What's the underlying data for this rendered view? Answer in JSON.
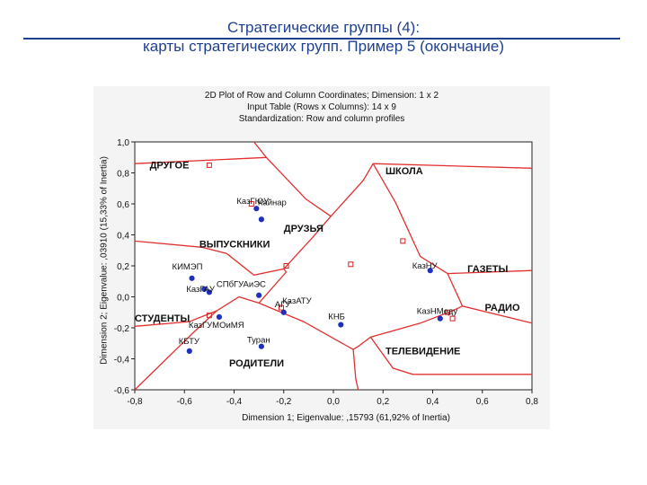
{
  "slide": {
    "title_line1": "Стратегические группы (4):",
    "title_line2": "карты стратегических групп. Пример 5 (окончание)"
  },
  "chart_data": {
    "type": "scatter",
    "title": "2D Plot of Row and Column Coordinates; Dimension: 1 x 2",
    "subtitle_lines": [
      "Input Table (Rows x Columns): 14 x 9",
      "Standardization: Row and column profiles"
    ],
    "xlabel": "Dimension 1; Eigenvalue: ,15793 (61,92% of Inertia)",
    "ylabel": "Dimension 2; Eigenvalue: ,03910 (15,33% of Inertia)",
    "xlim": [
      -0.8,
      0.8
    ],
    "ylim": [
      -0.6,
      1.0
    ],
    "x_ticks": [
      "-0,8",
      "-0,6",
      "-0,4",
      "-0,2",
      "0,0",
      "0,2",
      "0,4",
      "0,6",
      "0,8"
    ],
    "y_ticks": [
      "1,0",
      "0,8",
      "0,6",
      "0,4",
      "0,2",
      "0,0",
      "-0,2",
      "-0,4",
      "-0,6"
    ],
    "grid": false,
    "colors": {
      "rows": "#1f2fbf",
      "columns": "#d42020",
      "lines": "#e23030"
    },
    "rows_series": [
      {
        "label": "Кайнар",
        "x": -0.29,
        "y": 0.5
      },
      {
        "label": "КазГЮУ",
        "x": -0.31,
        "y": 0.57
      },
      {
        "label": "КИМЭП",
        "x": -0.57,
        "y": 0.12
      },
      {
        "label": "КазГАУ",
        "x": -0.52,
        "y": 0.05
      },
      {
        "label": "СПбГУАиЭС",
        "x": -0.5,
        "y": 0.03
      },
      {
        "label": "КазГУМОиМЯ",
        "x": -0.46,
        "y": -0.13
      },
      {
        "label": "КазАТУ",
        "x": -0.3,
        "y": 0.01
      },
      {
        "label": "АГУ",
        "x": -0.2,
        "y": -0.1
      },
      {
        "label": "КНБ",
        "x": 0.03,
        "y": -0.18
      },
      {
        "label": "КБТУ",
        "x": -0.58,
        "y": -0.35
      },
      {
        "label": "Туран",
        "x": -0.29,
        "y": -0.32
      },
      {
        "label": "КазНУ",
        "x": 0.39,
        "y": 0.17
      },
      {
        "label": "КазНМеду",
        "x": 0.43,
        "y": -0.14
      }
    ],
    "columns_series": [
      {
        "label": "ДРУГОЕ",
        "x": -0.5,
        "y": 0.85
      },
      {
        "label": "ШКОЛА",
        "x": 0.28,
        "y": 0.36
      },
      {
        "label": "ДРУЗЬЯ",
        "x": -0.33,
        "y": 0.6
      },
      {
        "label": "ВЫПУСКНИКИ",
        "x": 0.07,
        "y": 0.21
      },
      {
        "label": "ГАЗЕТЫ",
        "x": -0.19,
        "y": 0.2
      },
      {
        "label": "РАДИО",
        "x": 0.48,
        "y": -0.14
      },
      {
        "label": "СТУДЕНТЫ",
        "x": -0.5,
        "y": -0.12
      },
      {
        "label": "РОДИТЕЛИ",
        "x": -0.21,
        "y": -0.07
      },
      {
        "label": "ТЕЛЕВИДЕНИЕ",
        "x": 0.46,
        "y": -0.1
      }
    ],
    "group_labels": [
      {
        "text": "ДРУГОЕ",
        "x": -0.74,
        "y": 0.83
      },
      {
        "text": "ШКОЛА",
        "x": 0.21,
        "y": 0.79
      },
      {
        "text": "ДРУЗЬЯ",
        "x": -0.2,
        "y": 0.42
      },
      {
        "text": "ВЫПУСКНИКИ",
        "x": -0.54,
        "y": 0.32
      },
      {
        "text": "ГАЗЕТЫ",
        "x": 0.54,
        "y": 0.16
      },
      {
        "text": "РАДИО",
        "x": 0.61,
        "y": -0.09
      },
      {
        "text": "СТУДЕНТЫ",
        "x": -0.8,
        "y": -0.16
      },
      {
        "text": "РОДИТЕЛИ",
        "x": -0.42,
        "y": -0.45
      },
      {
        "text": "ТЕЛЕВИДЕНИЕ",
        "x": 0.21,
        "y": -0.37
      }
    ],
    "boundaries": [
      [
        [
          -0.8,
          0.36
        ],
        [
          -0.53,
          0.32
        ],
        [
          -0.43,
          0.28
        ],
        [
          -0.32,
          0.14
        ],
        [
          -0.2,
          0.18
        ],
        [
          -0.08,
          0.39
        ],
        [
          -0.01,
          0.52
        ],
        [
          0.12,
          0.75
        ],
        [
          0.16,
          0.86
        ]
      ],
      [
        [
          -0.01,
          0.52
        ],
        [
          -0.11,
          0.63
        ],
        [
          -0.27,
          0.9
        ],
        [
          -0.32,
          1.0
        ]
      ],
      [
        [
          -0.27,
          0.9
        ],
        [
          -0.8,
          0.86
        ]
      ],
      [
        [
          0.16,
          0.86
        ],
        [
          0.8,
          0.83
        ]
      ],
      [
        [
          0.16,
          0.86
        ],
        [
          0.25,
          0.61
        ],
        [
          0.35,
          0.26
        ],
        [
          0.46,
          0.15
        ]
      ],
      [
        [
          0.46,
          0.15
        ],
        [
          0.8,
          0.17
        ]
      ],
      [
        [
          0.46,
          0.15
        ],
        [
          0.52,
          -0.06
        ],
        [
          0.8,
          -0.17
        ]
      ],
      [
        [
          0.52,
          -0.06
        ],
        [
          0.48,
          -0.09
        ],
        [
          0.35,
          -0.17
        ],
        [
          0.15,
          -0.26
        ],
        [
          0.1,
          -0.32
        ],
        [
          0.08,
          -0.34
        ]
      ],
      [
        [
          0.15,
          -0.26
        ],
        [
          0.24,
          -0.46
        ],
        [
          0.32,
          -0.5
        ],
        [
          0.8,
          -0.5
        ]
      ],
      [
        [
          0.08,
          -0.34
        ],
        [
          0.09,
          -0.53
        ],
        [
          0.1,
          -0.6
        ]
      ],
      [
        [
          0.08,
          -0.34
        ],
        [
          -0.12,
          -0.16
        ],
        [
          -0.3,
          -0.04
        ],
        [
          -0.38,
          0.0
        ],
        [
          -0.47,
          -0.09
        ],
        [
          -0.58,
          -0.16
        ],
        [
          -0.8,
          -0.19
        ]
      ],
      [
        [
          -0.3,
          -0.04
        ],
        [
          -0.19,
          0.16
        ],
        [
          -0.2,
          0.18
        ]
      ],
      [
        [
          -0.47,
          -0.09
        ],
        [
          -0.57,
          -0.24
        ],
        [
          -0.8,
          -0.6
        ]
      ]
    ]
  }
}
